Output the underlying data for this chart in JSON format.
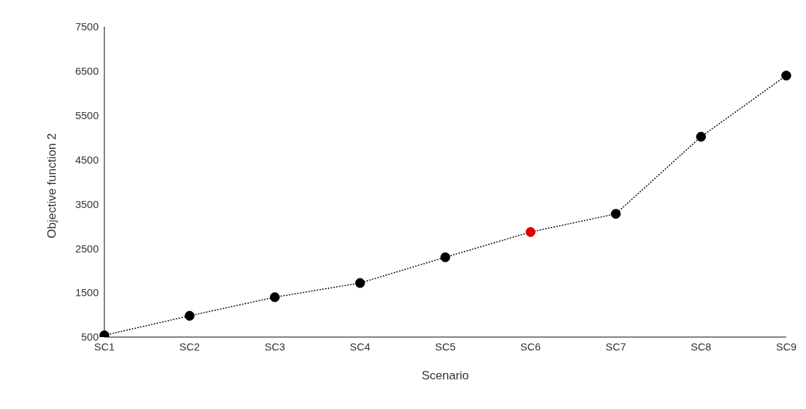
{
  "chart_data": {
    "type": "line",
    "xlabel": "Scenario",
    "ylabel": "Objective function 2",
    "categories": [
      "SC1",
      "SC2",
      "SC3",
      "SC4",
      "SC5",
      "SC6",
      "SC7",
      "SC8",
      "SC9"
    ],
    "series": [
      {
        "color": "#000000",
        "colors": [
          "#000000",
          "#000000",
          "#000000",
          "#000000",
          "#000000",
          "#e00000",
          "#000000",
          "#000000",
          "#000000"
        ],
        "values": [
          540,
          980,
          1400,
          1720,
          2300,
          2870,
          3280,
          5020,
          6400
        ]
      }
    ],
    "ylim": [
      500,
      7500
    ],
    "yticks": [
      500,
      1500,
      2500,
      3500,
      4500,
      5500,
      6500,
      7500
    ],
    "grid": false,
    "legend": false,
    "marker": "circle",
    "line_style": "dotted"
  }
}
